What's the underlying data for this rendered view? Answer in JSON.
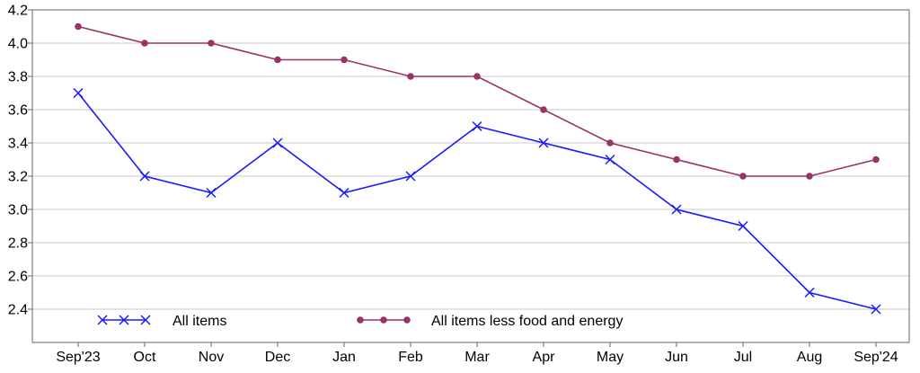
{
  "chart_data": {
    "type": "line",
    "title": "",
    "xlabel": "",
    "ylabel": "",
    "categories": [
      "Sep'23",
      "Oct",
      "Nov",
      "Dec",
      "Jan",
      "Feb",
      "Mar",
      "Apr",
      "May",
      "Jun",
      "Jul",
      "Aug",
      "Sep'24"
    ],
    "ylim": [
      2.2,
      4.2
    ],
    "yticks": [
      "2.4",
      "2.6",
      "2.8",
      "3.0",
      "3.2",
      "3.4",
      "3.6",
      "3.8",
      "4.0",
      "4.2"
    ],
    "grid": true,
    "legend_position": "bottom",
    "series": [
      {
        "name": "All items",
        "marker": "x",
        "color": "#1a1aff",
        "values": [
          3.7,
          3.2,
          3.1,
          3.4,
          3.1,
          3.2,
          3.5,
          3.4,
          3.3,
          3.0,
          2.9,
          2.5,
          2.4
        ]
      },
      {
        "name": "All items less food and energy",
        "marker": "circle",
        "color": "#993366",
        "values": [
          4.1,
          4.0,
          4.0,
          3.9,
          3.9,
          3.8,
          3.8,
          3.6,
          3.4,
          3.3,
          3.2,
          3.2,
          3.3
        ]
      }
    ]
  }
}
